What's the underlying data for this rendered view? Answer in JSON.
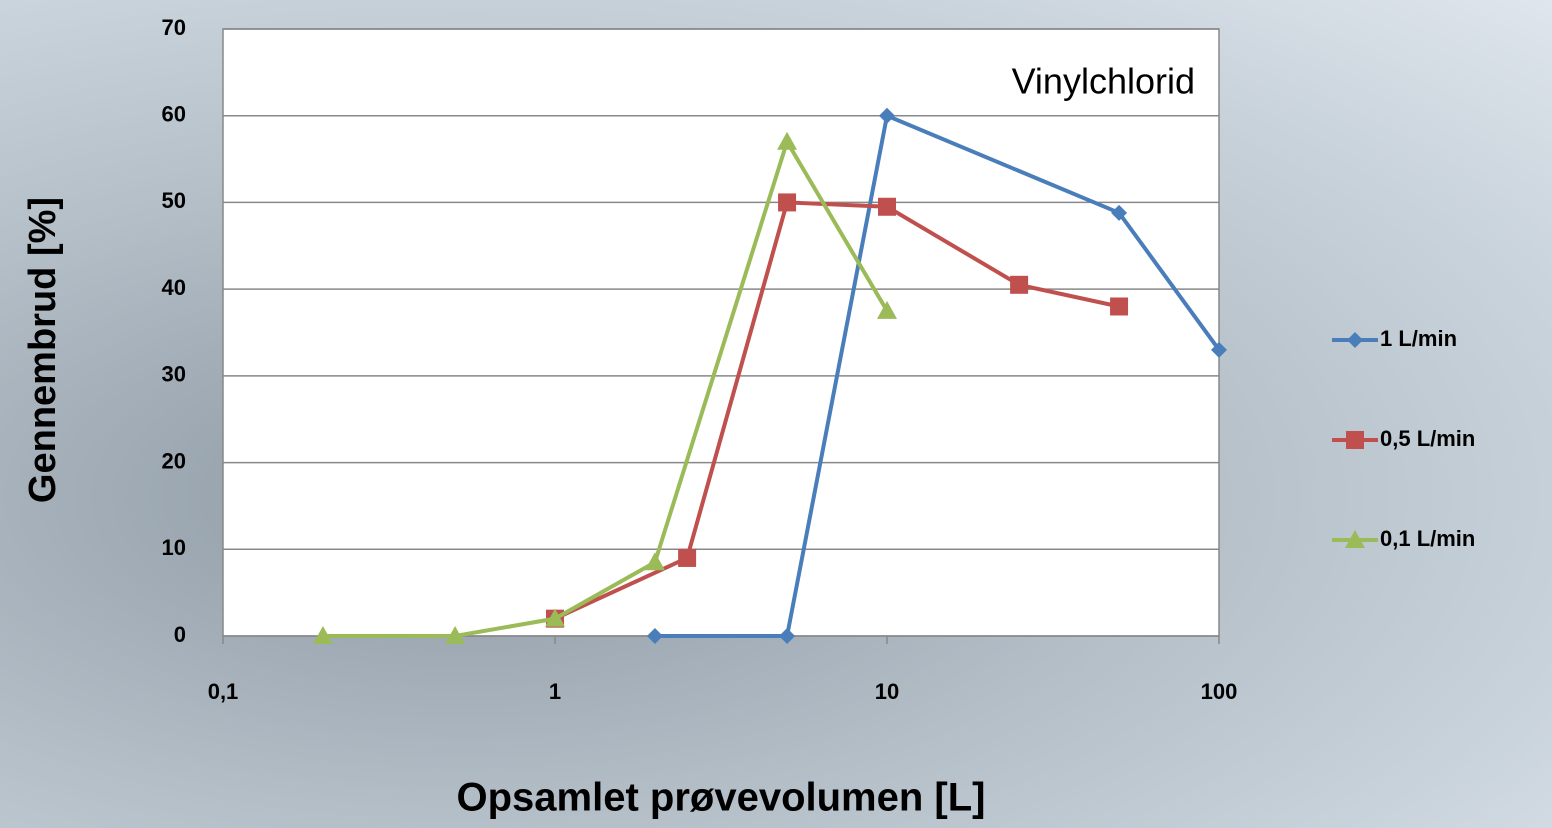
{
  "chart_data": {
    "type": "line",
    "annotation": "Vinylchlorid",
    "x_label": "Opsamlet prøvevolumen [L]",
    "y_label": "Gennembrud [%]",
    "xscale": "log",
    "xlim": [
      0.1,
      100
    ],
    "xticks": [
      {
        "value": 0.1,
        "label": "0,1"
      },
      1,
      10,
      100
    ],
    "ylim": [
      0,
      70
    ],
    "yticks": [
      0,
      10,
      20,
      30,
      40,
      50,
      60,
      70
    ],
    "grid": true,
    "legend": "right",
    "series": [
      {
        "name": "1 L/min",
        "color": "#4a7ebb",
        "marker": "diamond",
        "x": [
          2,
          5,
          10,
          50,
          100
        ],
        "values": [
          0,
          0,
          60,
          48.8,
          33
        ]
      },
      {
        "name": "0,5 L/min",
        "color": "#c0504d",
        "marker": "square",
        "x": [
          1,
          2.5,
          5,
          10,
          25,
          50
        ],
        "values": [
          2,
          9,
          50,
          49.5,
          40.5,
          38
        ]
      },
      {
        "name": "0,1 L/min",
        "color": "#9bbb59",
        "marker": "triangle",
        "x": [
          0.2,
          0.5,
          1,
          2,
          5,
          10
        ],
        "values": [
          0,
          0,
          2,
          8.5,
          57,
          37.5
        ]
      }
    ]
  }
}
